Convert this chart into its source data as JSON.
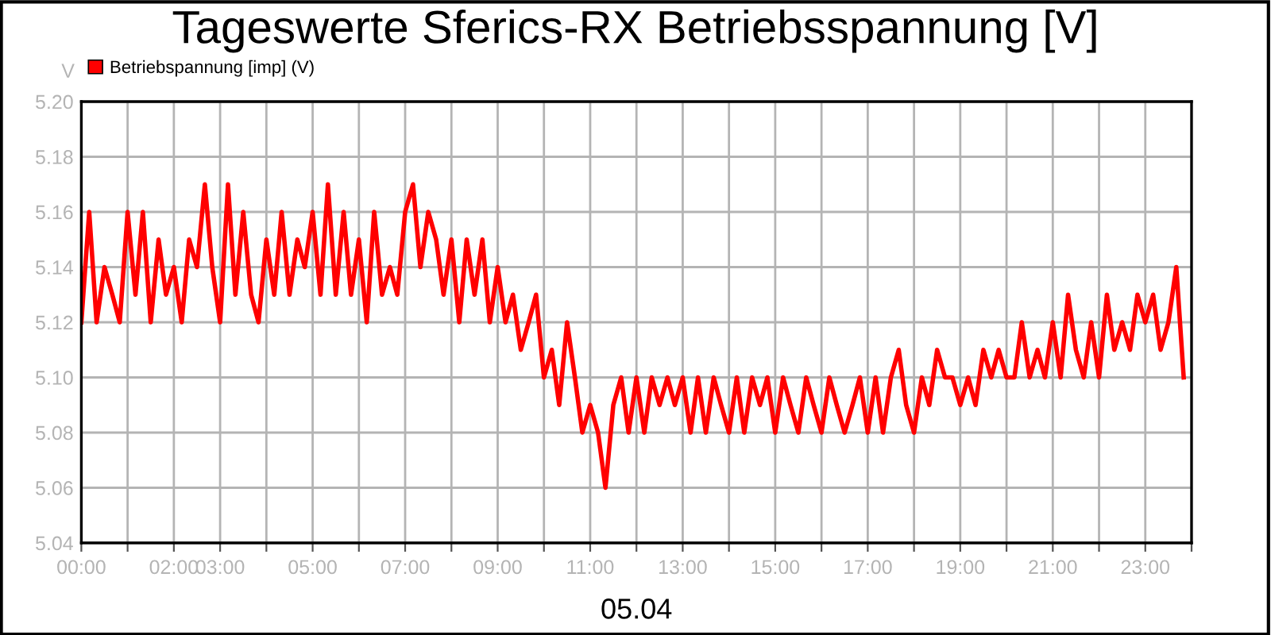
{
  "chart_data": {
    "type": "line",
    "title": "Tageswerte Sferics-RX Betriebsspannung [V]",
    "xlabel": "05.04",
    "ylabel": "V",
    "legend": "top left",
    "grid": true,
    "marker": "none",
    "line_style": "solid",
    "xlim": [
      0,
      24
    ],
    "ylim": [
      5.04,
      5.2
    ],
    "xticks": [
      {
        "value": 0,
        "label": "00:00"
      },
      {
        "value": 1,
        "label": null
      },
      {
        "value": 2,
        "label": "02:00"
      },
      {
        "value": 3,
        "label": "03:00"
      },
      {
        "value": 4,
        "label": null
      },
      {
        "value": 5,
        "label": "05:00"
      },
      {
        "value": 6,
        "label": null
      },
      {
        "value": 7,
        "label": "07:00"
      },
      {
        "value": 8,
        "label": null
      },
      {
        "value": 9,
        "label": "09:00"
      },
      {
        "value": 10,
        "label": null
      },
      {
        "value": 11,
        "label": "11:00"
      },
      {
        "value": 12,
        "label": null
      },
      {
        "value": 13,
        "label": "13:00"
      },
      {
        "value": 14,
        "label": null
      },
      {
        "value": 15,
        "label": "15:00"
      },
      {
        "value": 16,
        "label": null
      },
      {
        "value": 17,
        "label": "17:00"
      },
      {
        "value": 18,
        "label": null
      },
      {
        "value": 19,
        "label": "19:00"
      },
      {
        "value": 20,
        "label": null
      },
      {
        "value": 21,
        "label": "21:00"
      },
      {
        "value": 22,
        "label": null
      },
      {
        "value": 23,
        "label": "23:00"
      },
      {
        "value": 24,
        "label": null
      }
    ],
    "yticks": [
      {
        "value": 5.04,
        "label": "5.04"
      },
      {
        "value": 5.06,
        "label": "5.06"
      },
      {
        "value": 5.08,
        "label": "5.08"
      },
      {
        "value": 5.1,
        "label": "5.10"
      },
      {
        "value": 5.12,
        "label": "5.12"
      },
      {
        "value": 5.14,
        "label": "5.14"
      },
      {
        "value": 5.16,
        "label": "5.16"
      },
      {
        "value": 5.18,
        "label": "5.18"
      },
      {
        "value": 5.2,
        "label": "5.20"
      }
    ],
    "x": [
      0,
      0.17,
      0.33,
      0.5,
      0.67,
      0.83,
      1,
      1.17,
      1.33,
      1.5,
      1.67,
      1.83,
      2,
      2.17,
      2.33,
      2.5,
      2.67,
      2.83,
      3,
      3.17,
      3.33,
      3.5,
      3.67,
      3.83,
      4,
      4.17,
      4.33,
      4.5,
      4.67,
      4.83,
      5,
      5.17,
      5.33,
      5.5,
      5.67,
      5.83,
      6,
      6.17,
      6.33,
      6.5,
      6.67,
      6.83,
      7,
      7.17,
      7.33,
      7.5,
      7.67,
      7.83,
      8,
      8.17,
      8.33,
      8.5,
      8.67,
      8.83,
      9,
      9.17,
      9.33,
      9.5,
      9.67,
      9.83,
      10,
      10.17,
      10.33,
      10.5,
      10.67,
      10.83,
      11,
      11.17,
      11.33,
      11.5,
      11.67,
      11.83,
      12,
      12.17,
      12.33,
      12.5,
      12.67,
      12.83,
      13,
      13.17,
      13.33,
      13.5,
      13.67,
      13.83,
      14,
      14.17,
      14.33,
      14.5,
      14.67,
      14.83,
      15,
      15.17,
      15.33,
      15.5,
      15.67,
      15.83,
      16,
      16.17,
      16.33,
      16.5,
      16.67,
      16.83,
      17,
      17.17,
      17.33,
      17.5,
      17.67,
      17.83,
      18,
      18.17,
      18.33,
      18.5,
      18.67,
      18.83,
      19,
      19.17,
      19.33,
      19.5,
      19.67,
      19.83,
      20,
      20.17,
      20.33,
      20.5,
      20.67,
      20.83,
      21,
      21.17,
      21.33,
      21.5,
      21.67,
      21.83,
      22,
      22.17,
      22.33,
      22.5,
      22.67,
      22.83,
      23,
      23.17,
      23.33,
      23.5,
      23.67,
      23.83
    ],
    "series": [
      {
        "name": "Betriebspannung [imp] (V)",
        "color": "#ff0000",
        "values": [
          5.12,
          5.16,
          5.12,
          5.14,
          5.13,
          5.12,
          5.16,
          5.13,
          5.16,
          5.12,
          5.15,
          5.13,
          5.14,
          5.12,
          5.15,
          5.14,
          5.17,
          5.14,
          5.12,
          5.17,
          5.13,
          5.16,
          5.13,
          5.12,
          5.15,
          5.13,
          5.16,
          5.13,
          5.15,
          5.14,
          5.16,
          5.13,
          5.17,
          5.13,
          5.16,
          5.13,
          5.15,
          5.12,
          5.16,
          5.13,
          5.14,
          5.13,
          5.16,
          5.17,
          5.14,
          5.16,
          5.15,
          5.13,
          5.15,
          5.12,
          5.15,
          5.13,
          5.15,
          5.12,
          5.14,
          5.12,
          5.13,
          5.11,
          5.12,
          5.13,
          5.1,
          5.11,
          5.09,
          5.12,
          5.1,
          5.08,
          5.09,
          5.08,
          5.06,
          5.09,
          5.1,
          5.08,
          5.1,
          5.08,
          5.1,
          5.09,
          5.1,
          5.09,
          5.1,
          5.08,
          5.1,
          5.08,
          5.1,
          5.09,
          5.08,
          5.1,
          5.08,
          5.1,
          5.09,
          5.1,
          5.08,
          5.1,
          5.09,
          5.08,
          5.1,
          5.09,
          5.08,
          5.1,
          5.09,
          5.08,
          5.09,
          5.1,
          5.08,
          5.1,
          5.08,
          5.1,
          5.11,
          5.09,
          5.08,
          5.1,
          5.09,
          5.11,
          5.1,
          5.1,
          5.09,
          5.1,
          5.09,
          5.11,
          5.1,
          5.11,
          5.1,
          5.1,
          5.12,
          5.1,
          5.11,
          5.1,
          5.12,
          5.1,
          5.13,
          5.11,
          5.1,
          5.12,
          5.1,
          5.13,
          5.11,
          5.12,
          5.11,
          5.13,
          5.12,
          5.13,
          5.11,
          5.12,
          5.14,
          5.1
        ]
      }
    ]
  }
}
